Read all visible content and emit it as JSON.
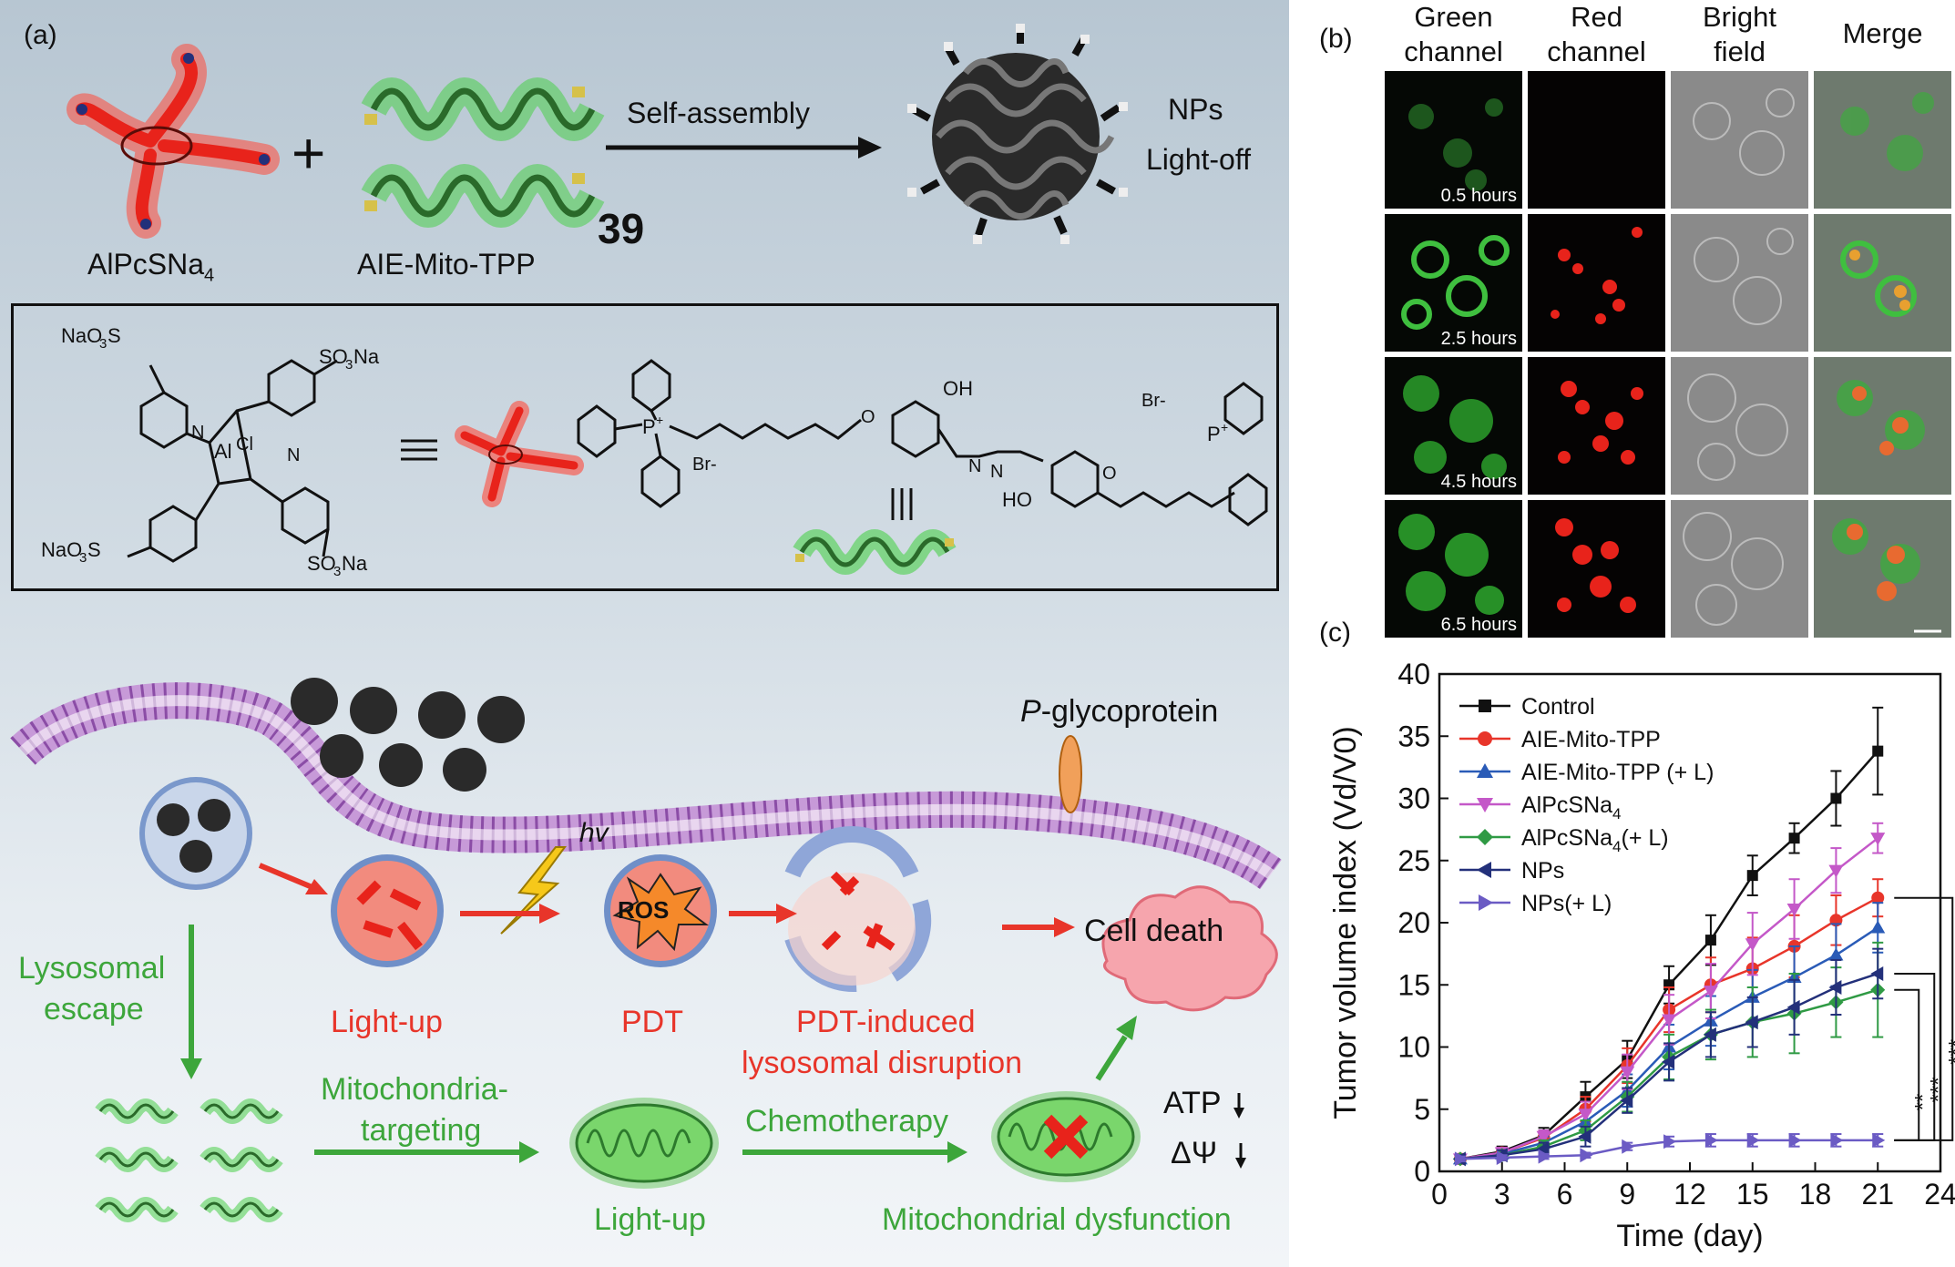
{
  "panel_a": {
    "label": "(a)",
    "top": {
      "alpc_label": "AlPcSNa",
      "alpc_sub": "4",
      "plus": "+",
      "aie_label": "AIE-Mito-TPP",
      "self_assembly": "Self-assembly",
      "compound_number": "39",
      "nps_line1": "NPs",
      "nps_line2": "Light-off"
    },
    "box": {
      "naso3s_top": "NaO",
      "so3na_top": "SO",
      "naso3s_bot": "NaO",
      "so3na_bot": "SO",
      "alcl": "Al",
      "cl": "Cl",
      "oh": "OH",
      "ho": "HO",
      "br1": "Br-",
      "br2": "Br-",
      "p": "P",
      "n": "N",
      "o": "O"
    },
    "bottom": {
      "pgp_italic": "P",
      "pgp_rest": "-glycoprotein",
      "hv": "hv",
      "lysosomal_escape_1": "Lysosomal",
      "lysosomal_escape_2": "escape",
      "light_up_1": "Light-up",
      "pdt": "PDT",
      "ros": "ROS",
      "pdt_induced_1": "PDT-induced",
      "pdt_induced_2": "lysosomal disruption",
      "cell_death": "Cell death",
      "mito_targeting_1": "Mitochondria-",
      "mito_targeting_2": "targeting",
      "light_up_2": "Light-up",
      "chemotherapy": "Chemotherapy",
      "mito_dysfunction": "Mitochondrial dysfunction",
      "atp": "ATP",
      "dpsi": "ΔΨ"
    }
  },
  "panel_b": {
    "label": "(b)",
    "columns": [
      {
        "line1": "Green",
        "line2": "channel"
      },
      {
        "line1": "Red",
        "line2": "channel"
      },
      {
        "line1": "Bright",
        "line2": "field"
      },
      {
        "line1": "Merge",
        "line2": ""
      }
    ],
    "rows": [
      "0.5 hours",
      "2.5 hours",
      "4.5 hours",
      "6.5 hours"
    ]
  },
  "panel_c": {
    "label": "(c)",
    "significance": [
      "**",
      "***",
      "***"
    ]
  },
  "colors": {
    "control": "#111111",
    "aie": "#e8352a",
    "aie_l": "#2a5bb7",
    "alpc": "#c458c8",
    "alpc_l": "#2f9a44",
    "nps": "#23307a",
    "nps_l": "#6b5bc4"
  },
  "chart_data": {
    "type": "line",
    "xlabel": "Time (day)",
    "ylabel": "Tumor volume index (Vd/V0)",
    "xlim": [
      0,
      24
    ],
    "ylim": [
      0,
      40
    ],
    "xticks": [
      0,
      3,
      6,
      9,
      12,
      15,
      18,
      21,
      24
    ],
    "yticks": [
      0,
      5,
      10,
      15,
      20,
      25,
      30,
      35,
      40
    ],
    "legend_position": "top-left",
    "x": [
      1,
      3,
      5,
      7,
      9,
      11,
      13,
      15,
      17,
      19,
      21
    ],
    "series": [
      {
        "name": "Control",
        "marker": "square",
        "color": "#111111",
        "values": [
          1.0,
          1.6,
          2.9,
          6.0,
          9.0,
          15.0,
          18.6,
          23.8,
          26.8,
          30.0,
          33.8
        ],
        "errors": [
          0.3,
          0.4,
          0.6,
          1.2,
          1.5,
          1.5,
          2.0,
          1.6,
          1.2,
          2.2,
          3.5
        ]
      },
      {
        "name": "AIE-Mito-TPP",
        "marker": "circle",
        "color": "#e8352a",
        "values": [
          1.0,
          1.5,
          2.7,
          5.0,
          8.5,
          13.0,
          15.0,
          16.3,
          18.1,
          20.2,
          22.0
        ],
        "errors": [
          0.3,
          0.4,
          0.5,
          1.0,
          1.4,
          1.8,
          2.2,
          2.5,
          2.5,
          2.0,
          1.5
        ]
      },
      {
        "name": "AIE-Mito-TPP (+ L)",
        "marker": "triangle-up",
        "color": "#2a5bb7",
        "values": [
          1.0,
          1.4,
          2.3,
          4.0,
          6.5,
          10.0,
          12.1,
          14.0,
          15.6,
          17.4,
          19.6
        ],
        "errors": [
          0.3,
          0.4,
          0.5,
          0.9,
          1.3,
          1.8,
          2.0,
          2.2,
          2.5,
          2.5,
          2.0
        ]
      },
      {
        "name": "AlPcSNa",
        "name_sub": "4",
        "marker": "triangle-down",
        "color": "#c458c8",
        "values": [
          1.0,
          1.5,
          2.8,
          4.6,
          8.0,
          12.2,
          14.5,
          18.3,
          21.1,
          24.2,
          26.8
        ],
        "errors": [
          0.3,
          0.4,
          0.5,
          1.0,
          1.4,
          2.0,
          2.2,
          2.5,
          2.4,
          1.8,
          1.2
        ]
      },
      {
        "name": "AlPcSNa",
        "name_sub": "4",
        "name_suffix": "(+ L)",
        "marker": "diamond",
        "color": "#2f9a44",
        "values": [
          1.0,
          1.3,
          2.0,
          3.3,
          6.0,
          9.2,
          11.0,
          12.0,
          12.7,
          13.6,
          14.6
        ],
        "errors": [
          0.3,
          0.4,
          0.5,
          0.8,
          1.2,
          1.8,
          2.0,
          2.8,
          3.2,
          2.8,
          3.8
        ]
      },
      {
        "name": "NPs",
        "marker": "triangle-left",
        "color": "#23307a",
        "values": [
          1.0,
          1.3,
          1.8,
          2.8,
          5.7,
          8.8,
          11.0,
          12.0,
          13.2,
          14.8,
          15.9
        ],
        "errors": [
          0.3,
          0.4,
          0.5,
          0.8,
          1.0,
          1.5,
          1.8,
          2.0,
          2.2,
          2.2,
          2.0
        ]
      },
      {
        "name": "NPs(+ L)",
        "marker": "triangle-right",
        "color": "#6b5bc4",
        "values": [
          1.0,
          1.1,
          1.2,
          1.3,
          2.0,
          2.4,
          2.5,
          2.5,
          2.5,
          2.5,
          2.5
        ],
        "errors": [
          0.2,
          0.2,
          0.2,
          0.2,
          0.3,
          0.4,
          0.5,
          0.5,
          0.5,
          0.5,
          0.5
        ]
      }
    ]
  }
}
